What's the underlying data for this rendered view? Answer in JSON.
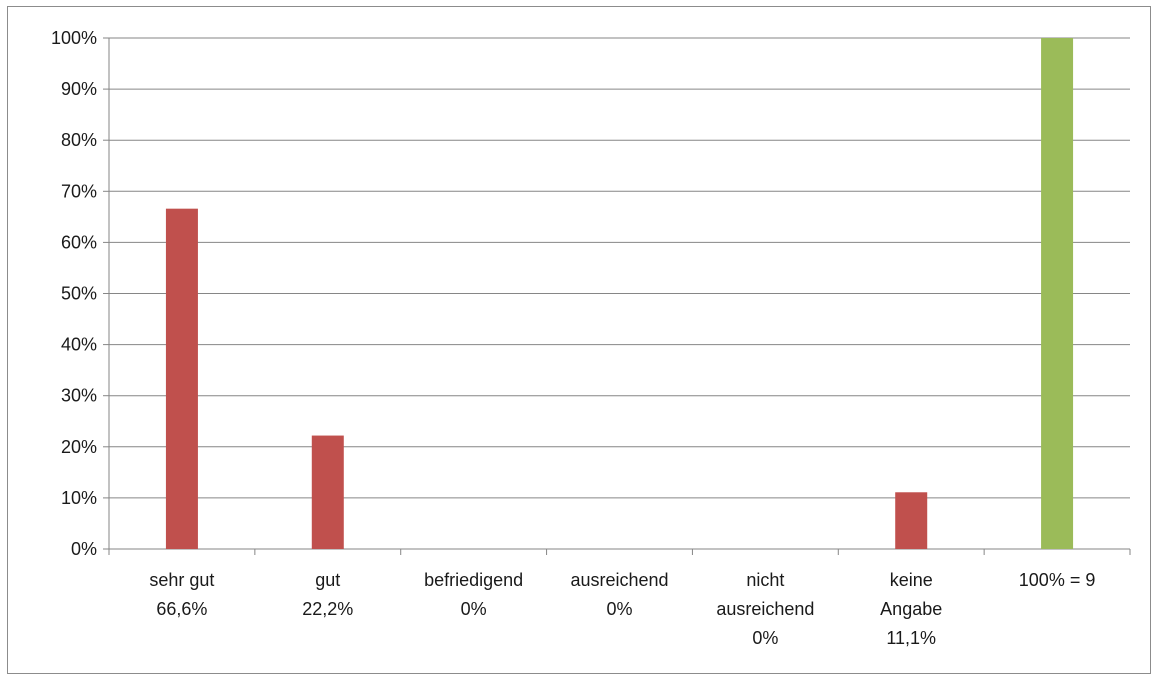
{
  "colors": {
    "bar_default": "#c0504d",
    "bar_total": "#9bbb59",
    "gridline": "#868686",
    "axis": "#868686",
    "background": "#ffffff"
  },
  "chart_data": {
    "type": "bar",
    "title": "",
    "xlabel": "",
    "ylabel": "",
    "ylim": [
      0,
      100
    ],
    "y_unit": "%",
    "y_ticks": [
      "0%",
      "10%",
      "20%",
      "30%",
      "40%",
      "50%",
      "60%",
      "70%",
      "80%",
      "90%",
      "100%"
    ],
    "grid": true,
    "legend": "none",
    "categories": [
      [
        "sehr gut",
        "66,6%"
      ],
      [
        "gut",
        "22,2%"
      ],
      [
        "befriedigend",
        "0%"
      ],
      [
        "ausreichend",
        "0%"
      ],
      [
        "nicht",
        "ausreichend",
        "0%"
      ],
      [
        "keine",
        "Angabe",
        "11,1%"
      ],
      [
        "100% = 9"
      ]
    ],
    "values": [
      66.6,
      22.2,
      0,
      0,
      0,
      11.1,
      100
    ],
    "bar_colors": [
      "#c0504d",
      "#c0504d",
      "#c0504d",
      "#c0504d",
      "#c0504d",
      "#c0504d",
      "#9bbb59"
    ]
  }
}
